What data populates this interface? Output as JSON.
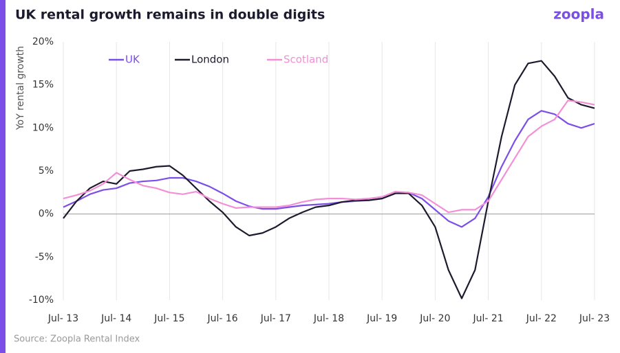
{
  "chart_data": {
    "type": "line",
    "title": "UK rental growth remains in double digits",
    "logo": "zoopla",
    "source": "Source: Zoopla Rental Index",
    "y_label": "YoY rental growth",
    "categories": [
      "Jul- 13",
      null,
      null,
      null,
      "Jul- 14",
      null,
      null,
      null,
      "Jul- 15",
      null,
      null,
      null,
      "Jul- 16",
      null,
      null,
      null,
      "Jul- 17",
      null,
      null,
      null,
      "Jul- 18",
      null,
      null,
      null,
      "Jul- 19",
      null,
      null,
      null,
      "Jul- 20",
      null,
      null,
      null,
      "Jul- 21",
      null,
      null,
      null,
      "Jul- 22",
      null,
      null,
      null,
      "Jul- 23"
    ],
    "series": [
      {
        "name": "UK",
        "color": "#7b4ee8",
        "values": [
          0.8,
          1.5,
          2.3,
          2.8,
          3.0,
          3.6,
          3.8,
          3.9,
          4.2,
          4.2,
          3.8,
          3.2,
          2.4,
          1.5,
          0.9,
          0.6,
          0.6,
          0.8,
          1.0,
          1.1,
          1.2,
          1.4,
          1.5,
          1.6,
          1.8,
          2.4,
          2.5,
          1.8,
          0.5,
          -0.8,
          -1.5,
          -0.5,
          2.0,
          5.5,
          8.5,
          11.0,
          12.0,
          11.6,
          10.5,
          10.0,
          10.5
        ]
      },
      {
        "name": "London",
        "color": "#1c1b2e",
        "values": [
          -0.5,
          1.5,
          3.0,
          3.8,
          3.5,
          5.0,
          5.2,
          5.5,
          5.6,
          4.5,
          3.0,
          1.5,
          0.2,
          -1.5,
          -2.5,
          -2.2,
          -1.5,
          -0.5,
          0.2,
          0.8,
          1.0,
          1.4,
          1.6,
          1.6,
          1.8,
          2.4,
          2.4,
          1.0,
          -1.5,
          -6.5,
          -9.8,
          -6.5,
          1.5,
          9.0,
          15.0,
          17.5,
          17.8,
          16.0,
          13.5,
          12.7,
          12.3
        ]
      },
      {
        "name": "Scotland",
        "color": "#f28fd6",
        "values": [
          1.8,
          2.2,
          2.7,
          3.5,
          4.8,
          4.0,
          3.3,
          3.0,
          2.5,
          2.3,
          2.6,
          1.8,
          1.2,
          0.7,
          0.8,
          0.8,
          0.8,
          1.0,
          1.4,
          1.7,
          1.8,
          1.8,
          1.7,
          1.8,
          2.0,
          2.6,
          2.5,
          2.2,
          1.2,
          0.2,
          0.5,
          0.5,
          1.5,
          4.0,
          6.5,
          9.0,
          10.2,
          11.0,
          13.2,
          13.0,
          12.7
        ]
      }
    ],
    "ylim": [
      -10,
      20
    ],
    "yticks": [
      {
        "value": -10,
        "label": "-10%"
      },
      {
        "value": -5,
        "label": "-5%"
      },
      {
        "value": 0,
        "label": "0%"
      },
      {
        "value": 5,
        "label": "5%"
      },
      {
        "value": 10,
        "label": "10%"
      },
      {
        "value": 15,
        "label": "15%"
      },
      {
        "value": 20,
        "label": "20%"
      }
    ],
    "legend": "top-left",
    "grid": true
  }
}
